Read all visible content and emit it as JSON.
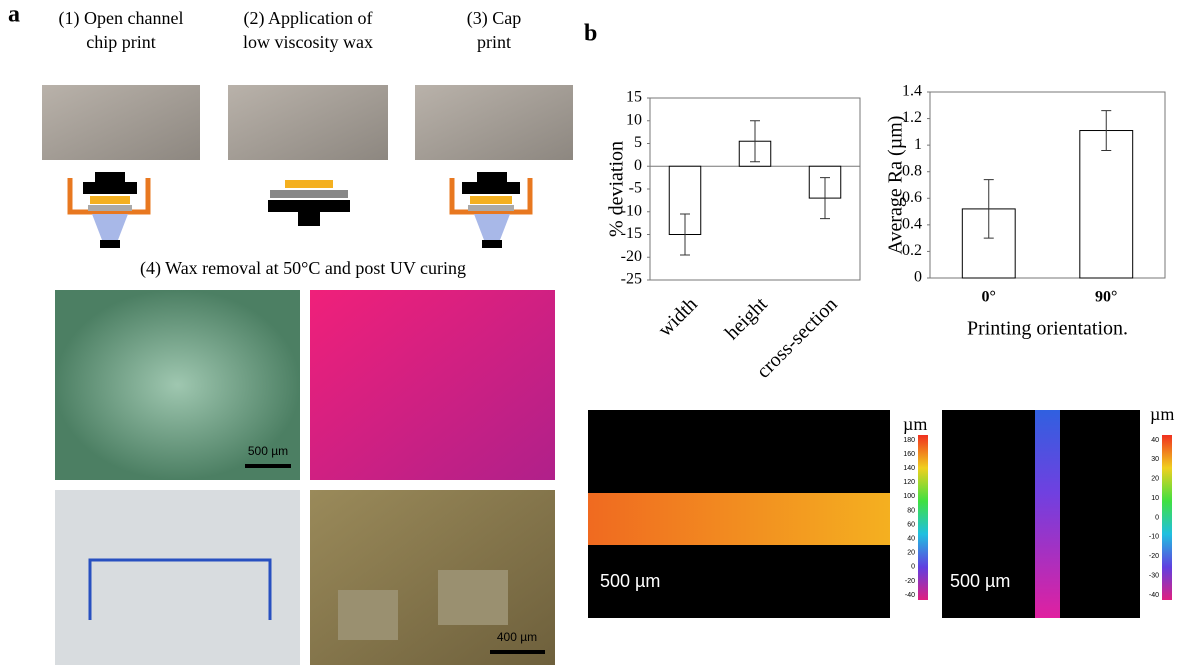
{
  "figure": {
    "panel_a": "a",
    "panel_b": "b",
    "steps": [
      "(1) Open channel\nchip print",
      "(2) Application of\nlow viscosity wax",
      "(3) Cap\nprint"
    ],
    "step4": "(4) Wax removal at 50°C and post UV curing",
    "photo_scales": [
      "500 µm",
      "400 µm"
    ],
    "map_unit": "µm",
    "map_scales": [
      "500 µm",
      "500 µm"
    ],
    "colorbar_left": [
      180,
      160,
      140,
      120,
      100,
      80,
      60,
      40,
      20,
      0,
      -20,
      -40
    ],
    "colorbar_right": [
      40,
      30,
      20,
      10,
      0,
      -10,
      -20,
      -30,
      -40
    ]
  },
  "chart_data": [
    {
      "type": "bar",
      "ylabel": "% deviation",
      "categories": [
        "width",
        "height",
        "cross-section"
      ],
      "values": [
        -15,
        5.5,
        -7
      ],
      "errors": [
        4.5,
        4.5,
        4.5
      ],
      "color": "#ffffff",
      "ylim": [
        -25,
        15
      ],
      "yticks": [
        -25,
        -20,
        -15,
        -10,
        -5,
        0,
        5,
        10,
        15
      ],
      "rotate_labels": true
    },
    {
      "type": "bar",
      "ylabel": "Average Ra (µm)",
      "xlabel": "Printing orientation.",
      "categories": [
        "0°",
        "90°"
      ],
      "values": [
        0.52,
        1.11
      ],
      "errors": [
        0.22,
        0.15
      ],
      "color": "#ffffff",
      "ylim": [
        0,
        1.4
      ],
      "yticks": [
        0,
        0.2,
        0.4,
        0.6,
        0.8,
        1,
        1.2,
        1.4
      ],
      "rotate_labels": false
    }
  ]
}
